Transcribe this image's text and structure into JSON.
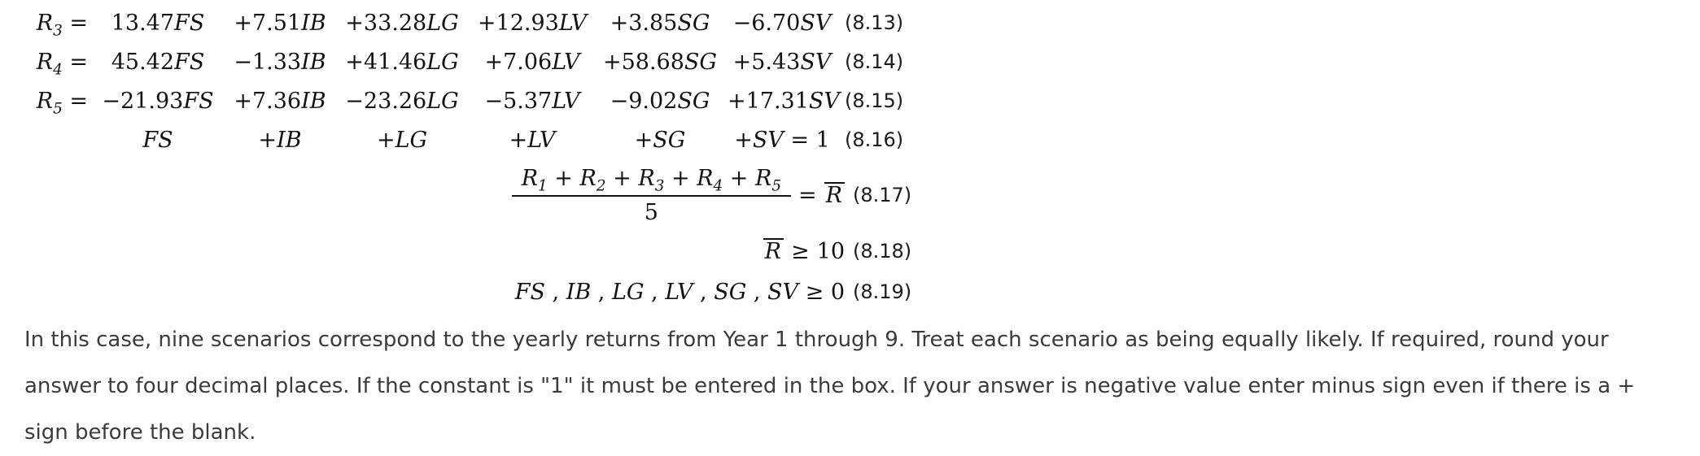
{
  "colors": {
    "background": "#ffffff",
    "math_text": "#131313",
    "body_text": "#3b3b3b"
  },
  "equations": {
    "coef_rows": [
      {
        "lhs_var": "R",
        "lhs_sub": "3",
        "equals": "=",
        "terms": [
          {
            "coef": "13.47",
            "var": "FS"
          },
          {
            "coef": "+7.51",
            "var": "IB"
          },
          {
            "coef": "+33.28",
            "var": "LG"
          },
          {
            "coef": "+12.93",
            "var": "LV"
          },
          {
            "coef": "+3.85",
            "var": "SG"
          },
          {
            "coef": "−6.70",
            "var": "SV"
          }
        ],
        "number": "(8.13)"
      },
      {
        "lhs_var": "R",
        "lhs_sub": "4",
        "equals": "=",
        "terms": [
          {
            "coef": "45.42",
            "var": "FS"
          },
          {
            "coef": "−1.33",
            "var": "IB"
          },
          {
            "coef": "+41.46",
            "var": "LG"
          },
          {
            "coef": "+7.06",
            "var": "LV"
          },
          {
            "coef": "+58.68",
            "var": "SG"
          },
          {
            "coef": "+5.43",
            "var": "SV"
          }
        ],
        "number": "(8.14)"
      },
      {
        "lhs_var": "R",
        "lhs_sub": "5",
        "equals": "=",
        "terms": [
          {
            "coef": "−21.93",
            "var": "FS"
          },
          {
            "coef": "+7.36",
            "var": "IB"
          },
          {
            "coef": "−23.26",
            "var": "LG"
          },
          {
            "coef": "−5.37",
            "var": "LV"
          },
          {
            "coef": "−9.02",
            "var": "SG"
          },
          {
            "coef": "+17.31",
            "var": "SV"
          }
        ],
        "number": "(8.15)"
      }
    ],
    "sum_row": {
      "terms": [
        {
          "coef": "",
          "var": "FS"
        },
        {
          "coef": "+",
          "var": "IB"
        },
        {
          "coef": "+",
          "var": "LG"
        },
        {
          "coef": "+",
          "var": "LV"
        },
        {
          "coef": "+",
          "var": "SG"
        },
        {
          "coef": "+",
          "var": "SV"
        }
      ],
      "suffix": "= 1",
      "number": "(8.16)"
    },
    "average_row": {
      "numerator_terms": [
        {
          "var": "R",
          "sub": "1"
        },
        {
          "var": "R",
          "sub": "2"
        },
        {
          "var": "R",
          "sub": "3"
        },
        {
          "var": "R",
          "sub": "4"
        },
        {
          "var": "R",
          "sub": "5"
        }
      ],
      "plus": "+",
      "denominator": "5",
      "equals": "=",
      "rbar": "R",
      "number": "(8.17)"
    },
    "rbar_row": {
      "rbar": "R",
      "relation": "≥",
      "value": "10",
      "number": "(8.18)"
    },
    "nonneg_row": {
      "vars": [
        "FS",
        "IB",
        "LG",
        "LV",
        "SG",
        "SV"
      ],
      "separator": ",",
      "relation": "≥",
      "value": "0",
      "number": "(8.19)"
    }
  },
  "paragraph": {
    "text": "In this case, nine scenarios correspond to the yearly returns from Year 1 through 9. Treat each scenario as being equally likely. If required, round your answer to four decimal places. If the constant is \"1\" it must be entered in the box. If your answer is negative value enter minus sign even if there is a + sign before the blank."
  }
}
